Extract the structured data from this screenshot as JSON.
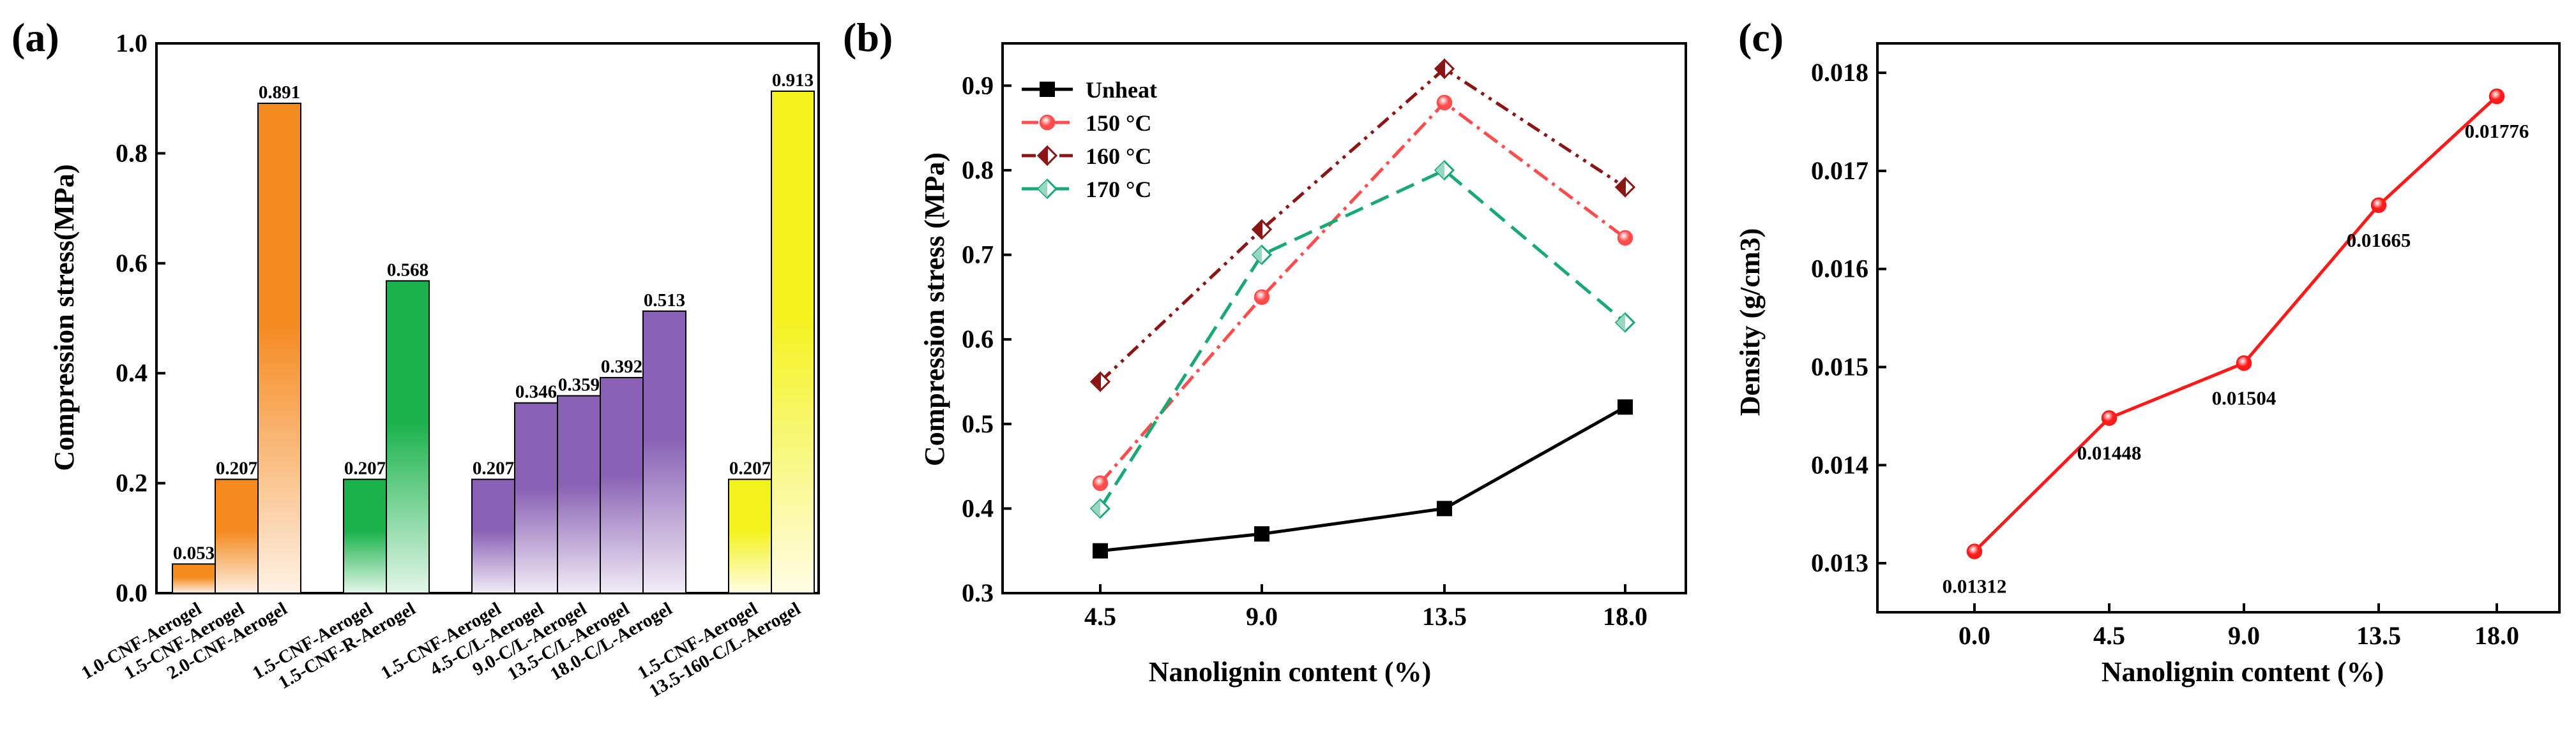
{
  "panel_labels": [
    "(a)",
    "(b)",
    "(c)"
  ],
  "chart_data": [
    {
      "type": "bar",
      "ylabel": "Compression stress(MPa)",
      "xlabel": "",
      "ylim": [
        0,
        1.0
      ],
      "yticks": [
        "0.0",
        "0.2",
        "0.4",
        "0.6",
        "0.8",
        "1.0"
      ],
      "groups": [
        {
          "color": "#f58a1f",
          "bars": [
            {
              "label": "1.0-CNF-Aerogel",
              "value": 0.053,
              "value_label": "0.053"
            },
            {
              "label": "1.5-CNF-Aerogel",
              "value": 0.207,
              "value_label": "0.207"
            },
            {
              "label": "2.0-CNF-Aerogel",
              "value": 0.891,
              "value_label": "0.891"
            }
          ]
        },
        {
          "color": "#19b24b",
          "bars": [
            {
              "label": "1.5-CNF-Aerogel",
              "value": 0.207,
              "value_label": "0.207"
            },
            {
              "label": "1.5-CNF-R-Aerogel",
              "value": 0.568,
              "value_label": "0.568"
            }
          ]
        },
        {
          "color": "#8a61b5",
          "bars": [
            {
              "label": "1.5-CNF-Aerogel",
              "value": 0.207,
              "value_label": "0.207"
            },
            {
              "label": "4.5-C/L-Aerogel",
              "value": 0.346,
              "value_label": "0.346"
            },
            {
              "label": "9.0-C/L-Aerogel",
              "value": 0.359,
              "value_label": "0.359"
            },
            {
              "label": "13.5-C/L-Aerogel",
              "value": 0.392,
              "value_label": "0.392"
            },
            {
              "label": "18.0-C/L-Aerogel",
              "value": 0.513,
              "value_label": "0.513"
            }
          ]
        },
        {
          "color": "#f4f21e",
          "bars": [
            {
              "label": "1.5-CNF-Aerogel",
              "value": 0.207,
              "value_label": "0.207"
            },
            {
              "label": "13.5-160-C/L-Aerogel",
              "value": 0.913,
              "value_label": "0.913"
            }
          ]
        }
      ]
    },
    {
      "type": "line",
      "xlabel": "Nanolignin content (%)",
      "ylabel": "Compression stress (MPa)",
      "x": [
        4.5,
        9.0,
        13.5,
        18.0
      ],
      "xticks": [
        "4.5",
        "9.0",
        "13.5",
        "18.0"
      ],
      "ylim": [
        0.3,
        0.95
      ],
      "yticks": [
        "0.3",
        "0.4",
        "0.5",
        "0.6",
        "0.7",
        "0.8",
        "0.9"
      ],
      "legend_position": "top-left",
      "series": [
        {
          "name": "Unheat",
          "values": [
            0.35,
            0.37,
            0.4,
            0.52
          ],
          "color": "#000000",
          "dash": "",
          "marker": "square"
        },
        {
          "name": "150 °C",
          "values": [
            0.43,
            0.65,
            0.88,
            0.72
          ],
          "color": "#ff4d4d",
          "dash": "26,9,5,9",
          "marker": "circle"
        },
        {
          "name": "160 °C",
          "values": [
            0.55,
            0.73,
            0.92,
            0.78
          ],
          "color": "#8b1515",
          "dash": "22,9,5,9,5,9",
          "marker": "half-diamond"
        },
        {
          "name": "170 °C",
          "values": [
            0.4,
            0.7,
            0.8,
            0.62
          ],
          "color": "#1aa874",
          "dash": "30,14",
          "marker": "diamond"
        }
      ]
    },
    {
      "type": "line",
      "xlabel": "Nanolignin content (%)",
      "ylabel": "Density (g/cm3)",
      "x": [
        0.0,
        4.5,
        9.0,
        13.5,
        18.0
      ],
      "xticks": [
        "0.0",
        "4.5",
        "9.0",
        "13.5",
        "18.0"
      ],
      "ylim": [
        0.0125,
        0.0183
      ],
      "yticks": [
        "0.013",
        "0.014",
        "0.015",
        "0.016",
        "0.017",
        "0.018"
      ],
      "series": [
        {
          "values": [
            0.01312,
            0.01448,
            0.01504,
            0.01665,
            0.01776
          ],
          "color": "#ff1a1a",
          "point_labels": [
            "0.01312",
            "0.01448",
            "0.01504",
            "0.01665",
            "0.01776"
          ]
        }
      ]
    }
  ]
}
